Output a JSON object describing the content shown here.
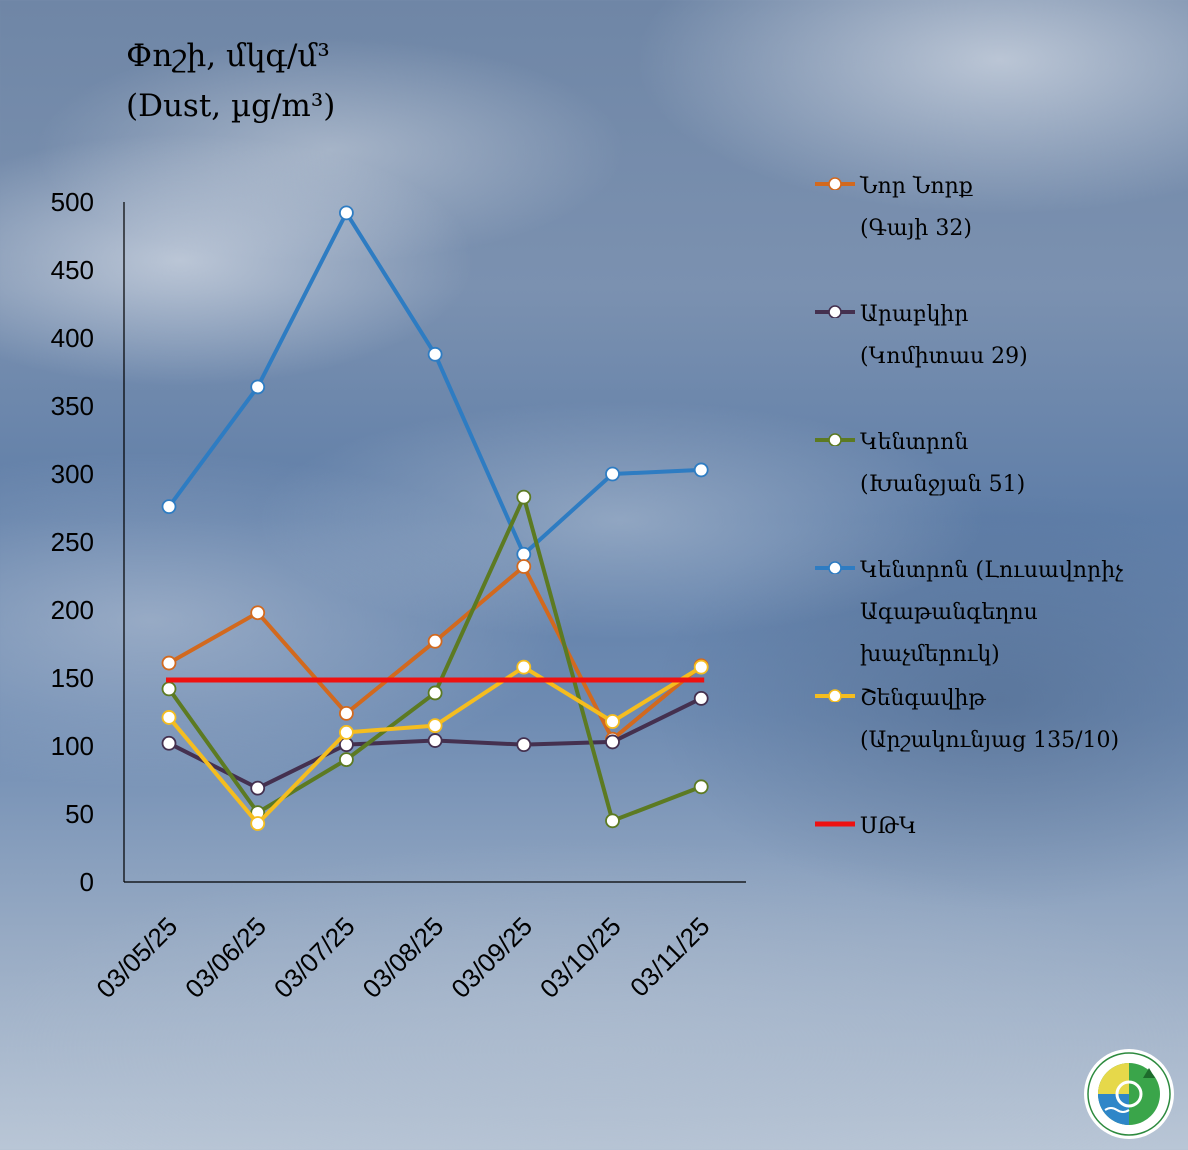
{
  "chart_data": {
    "type": "line",
    "ylabel": "Փոշի, մկգ/մ³",
    "ylabel_en": "(Dust, µg/m³)",
    "ylim": [
      0,
      500
    ],
    "yticks": [
      0,
      50,
      100,
      150,
      200,
      250,
      300,
      350,
      400,
      450,
      500
    ],
    "categories": [
      "03/05/25",
      "03/06/25",
      "03/07/25",
      "03/08/25",
      "03/09/25",
      "03/10/25",
      "03/11/25"
    ],
    "grid": false,
    "legend_position": "right",
    "series": [
      {
        "name": "Նոր Նորք\n(Գայի 32)",
        "color": "#d2691e",
        "values": [
          161,
          198,
          124,
          177,
          232,
          105,
          159
        ]
      },
      {
        "name": "Արաբկիր\n(Կոմիտաս 29)",
        "color": "#44304f",
        "values": [
          102,
          69,
          101,
          104,
          101,
          103,
          135
        ]
      },
      {
        "name": "Կենտրոն\n(Խանջյան 51)",
        "color": "#5c7a22",
        "values": [
          142,
          51,
          90,
          139,
          283,
          45,
          70
        ]
      },
      {
        "name": "Կենտրոն (Լուսավորիչ\nԱգաթանգեղոս\nխաչմերուկ)",
        "color": "#2e7cc2",
        "values": [
          276,
          364,
          492,
          388,
          241,
          300,
          303
        ]
      },
      {
        "name": "Շենգավիթ\n(Արշակունյաց 135/10)",
        "color": "#f5bd1f",
        "values": [
          121,
          43,
          110,
          115,
          158,
          118,
          158
        ]
      }
    ],
    "reference_line": {
      "name": "ՍԹԿ",
      "value": 150,
      "color": "#ee1111"
    }
  }
}
